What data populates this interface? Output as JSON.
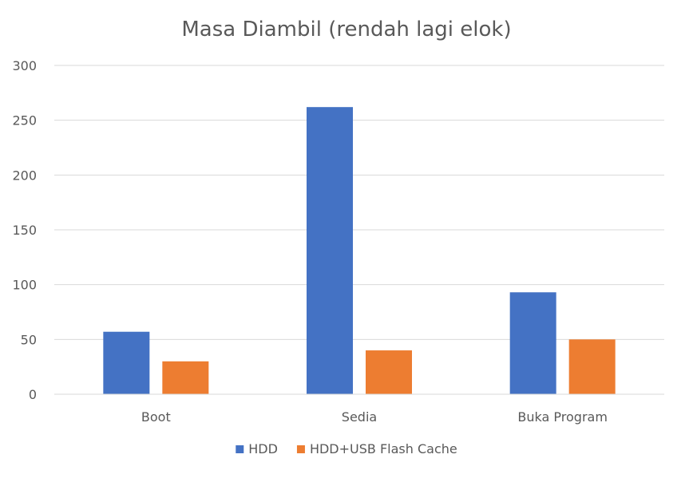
{
  "chart_data": {
    "type": "bar",
    "title": "Masa Diambil (rendah lagi elok)",
    "xlabel": "",
    "ylabel": "",
    "categories": [
      "Boot",
      "Sedia",
      "Buka Program"
    ],
    "series": [
      {
        "name": "HDD",
        "values": [
          57,
          262,
          93
        ],
        "color": "#4472C4"
      },
      {
        "name": "HDD+USB Flash Cache",
        "values": [
          30,
          40,
          50
        ],
        "color": "#ED7D31"
      }
    ],
    "ylim": [
      0,
      300
    ],
    "yticks": [
      0,
      50,
      100,
      150,
      200,
      250,
      300
    ],
    "grid": true,
    "legend_position": "bottom-center"
  }
}
